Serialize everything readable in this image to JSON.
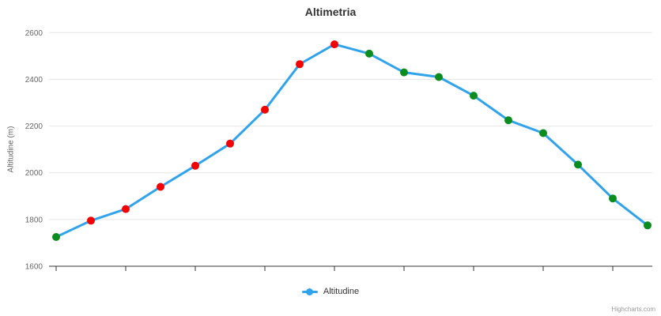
{
  "credits": "Highcharts.com",
  "chart_data": {
    "type": "line",
    "title": "Altimetria",
    "xlabel": "",
    "ylabel": "Altitudine (m)",
    "ylim": [
      1600,
      2600
    ],
    "y_ticks": [
      1600,
      1800,
      2000,
      2200,
      2400,
      2600
    ],
    "grid": true,
    "legend_position": "bottom-center",
    "x_axis_labels": "none",
    "x_tick_every_n_points": 2,
    "series": [
      {
        "name": "Altitudine",
        "line_color": "#31a3ec",
        "values": [
          1725,
          1795,
          1845,
          1940,
          2030,
          2125,
          2270,
          2465,
          2550,
          2510,
          2430,
          2410,
          2330,
          2225,
          2170,
          2035,
          1890,
          1775
        ],
        "point_colors": [
          "green",
          "red",
          "red",
          "red",
          "red",
          "red",
          "red",
          "red",
          "red",
          "green",
          "green",
          "green",
          "green",
          "green",
          "green",
          "green",
          "green",
          "green"
        ]
      }
    ],
    "colors": {
      "ascending_marker": "#f40000",
      "descending_marker": "#0b8c1e",
      "grid_line": "#e6e6e6",
      "axis_line": "#333333",
      "tick_label": "#666666"
    }
  }
}
